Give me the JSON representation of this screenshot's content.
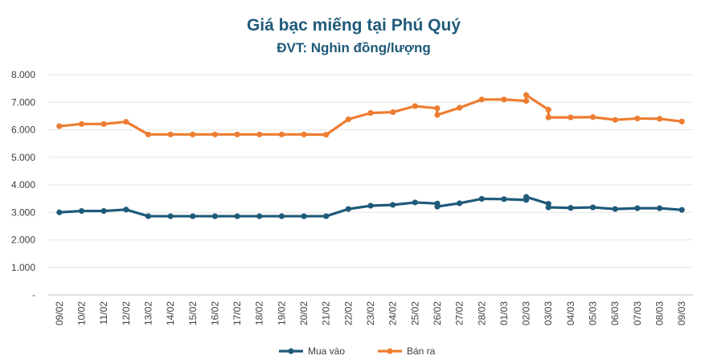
{
  "chart_data": {
    "type": "line",
    "title": "Giá bạc miếng tại Phú Quý",
    "subtitle": "ĐVT: Nghìn đồng/lượng",
    "ylim": [
      0,
      8000
    ],
    "yticks": [
      {
        "value": 0,
        "label": "-"
      },
      {
        "value": 1000,
        "label": "1.000"
      },
      {
        "value": 2000,
        "label": "2.000"
      },
      {
        "value": 3000,
        "label": "3.000"
      },
      {
        "value": 4000,
        "label": "4.000"
      },
      {
        "value": 5000,
        "label": "5.000"
      },
      {
        "value": 6000,
        "label": "6.000"
      },
      {
        "value": 7000,
        "label": "7.000"
      },
      {
        "value": 8000,
        "label": "8.000"
      }
    ],
    "categories": [
      "09/02",
      "10/02",
      "11/02",
      "12/02",
      "13/02",
      "14/02",
      "15/02",
      "16/02",
      "17/02",
      "18/02",
      "19/02",
      "20/02",
      "21/02",
      "22/02",
      "23/02",
      "24/02",
      "25/02",
      "26/02",
      "27/02",
      "28/02",
      "01/03",
      "02/03",
      "03/03",
      "04/03",
      "05/03",
      "06/03",
      "07/03",
      "08/03",
      "09/03"
    ],
    "legend_position": "bottom",
    "series": [
      {
        "name": "Mua vào",
        "color": "#1f5a7a",
        "points": [
          {
            "x": 0,
            "y": 3000
          },
          {
            "x": 1,
            "y": 3050
          },
          {
            "x": 2,
            "y": 3050
          },
          {
            "x": 3,
            "y": 3100
          },
          {
            "x": 4,
            "y": 2860
          },
          {
            "x": 5,
            "y": 2860
          },
          {
            "x": 6,
            "y": 2860
          },
          {
            "x": 7,
            "y": 2860
          },
          {
            "x": 8,
            "y": 2860
          },
          {
            "x": 9,
            "y": 2860
          },
          {
            "x": 10,
            "y": 2860
          },
          {
            "x": 11,
            "y": 2860
          },
          {
            "x": 12,
            "y": 2860
          },
          {
            "x": 13,
            "y": 3120
          },
          {
            "x": 14,
            "y": 3240
          },
          {
            "x": 15,
            "y": 3270
          },
          {
            "x": 16,
            "y": 3360
          },
          {
            "x": 17,
            "y": 3320
          },
          {
            "x": 17,
            "y": 3210
          },
          {
            "x": 18,
            "y": 3330
          },
          {
            "x": 19,
            "y": 3490
          },
          {
            "x": 20,
            "y": 3480
          },
          {
            "x": 21,
            "y": 3450
          },
          {
            "x": 21,
            "y": 3560
          },
          {
            "x": 22,
            "y": 3310
          },
          {
            "x": 22,
            "y": 3180
          },
          {
            "x": 23,
            "y": 3160
          },
          {
            "x": 24,
            "y": 3180
          },
          {
            "x": 25,
            "y": 3120
          },
          {
            "x": 26,
            "y": 3150
          },
          {
            "x": 27,
            "y": 3150
          },
          {
            "x": 28,
            "y": 3090
          }
        ]
      },
      {
        "name": "Bán ra",
        "color": "#ed7d31",
        "points": [
          {
            "x": 0,
            "y": 6130
          },
          {
            "x": 1,
            "y": 6210
          },
          {
            "x": 2,
            "y": 6210
          },
          {
            "x": 3,
            "y": 6290
          },
          {
            "x": 4,
            "y": 5830
          },
          {
            "x": 5,
            "y": 5830
          },
          {
            "x": 6,
            "y": 5830
          },
          {
            "x": 7,
            "y": 5830
          },
          {
            "x": 8,
            "y": 5830
          },
          {
            "x": 9,
            "y": 5830
          },
          {
            "x": 10,
            "y": 5830
          },
          {
            "x": 11,
            "y": 5830
          },
          {
            "x": 12,
            "y": 5820
          },
          {
            "x": 13,
            "y": 6380
          },
          {
            "x": 14,
            "y": 6610
          },
          {
            "x": 15,
            "y": 6640
          },
          {
            "x": 16,
            "y": 6860
          },
          {
            "x": 17,
            "y": 6780
          },
          {
            "x": 17,
            "y": 6540
          },
          {
            "x": 18,
            "y": 6800
          },
          {
            "x": 19,
            "y": 7100
          },
          {
            "x": 20,
            "y": 7100
          },
          {
            "x": 21,
            "y": 7050
          },
          {
            "x": 21,
            "y": 7260
          },
          {
            "x": 22,
            "y": 6730
          },
          {
            "x": 22,
            "y": 6450
          },
          {
            "x": 23,
            "y": 6450
          },
          {
            "x": 24,
            "y": 6460
          },
          {
            "x": 25,
            "y": 6360
          },
          {
            "x": 26,
            "y": 6410
          },
          {
            "x": 27,
            "y": 6400
          },
          {
            "x": 28,
            "y": 6300
          }
        ]
      }
    ]
  }
}
